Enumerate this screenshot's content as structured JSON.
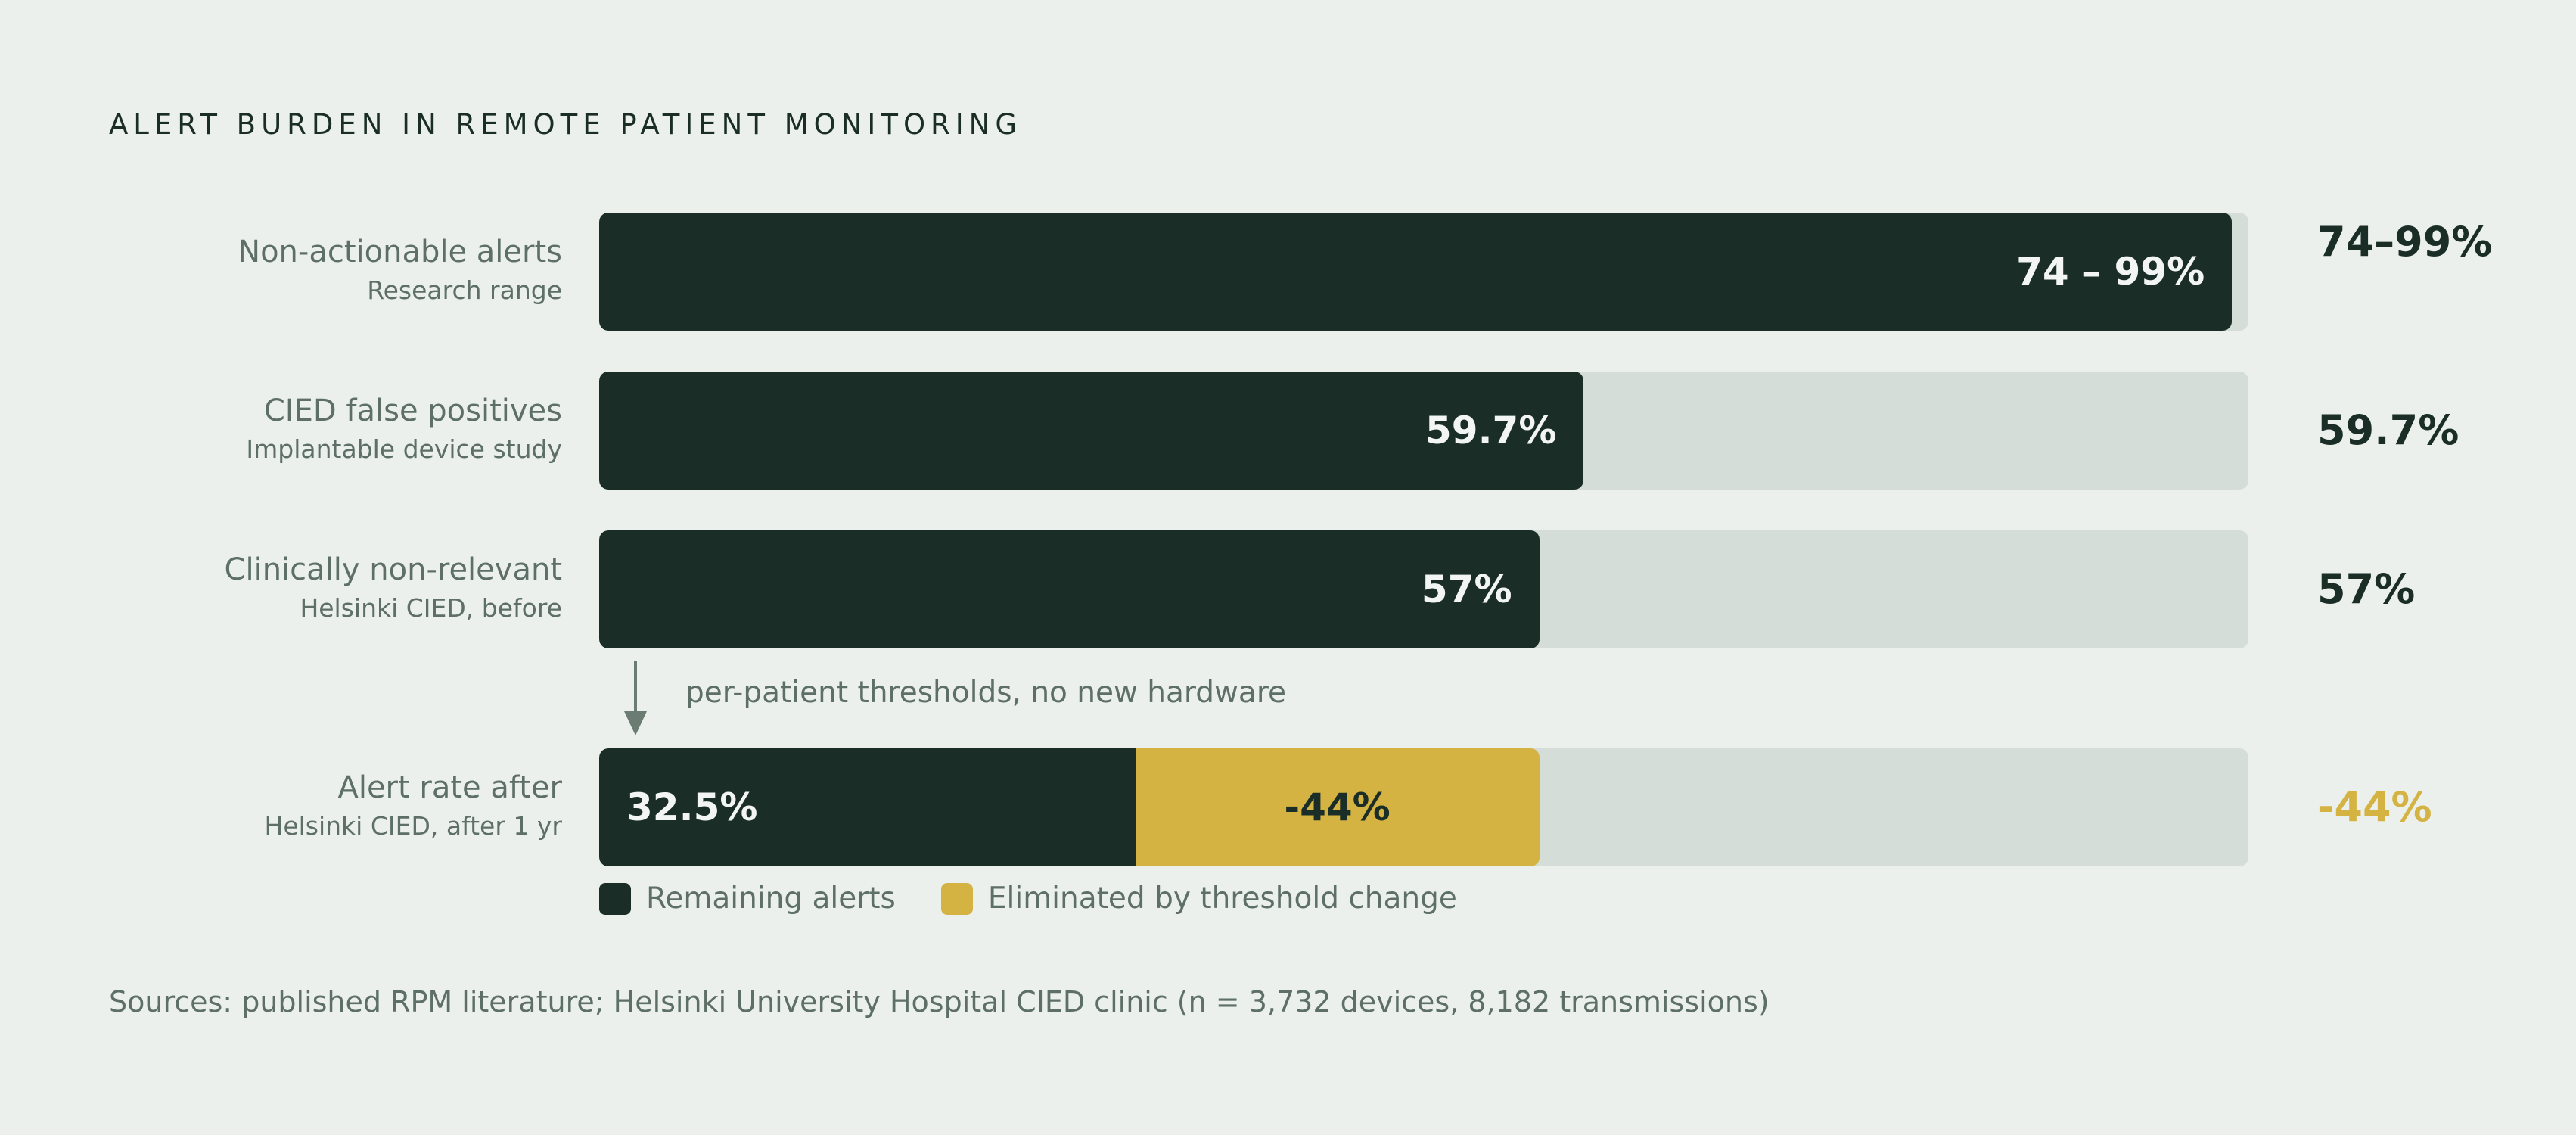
{
  "chart_data": {
    "type": "bar",
    "orientation": "horizontal",
    "title": "ALERT BURDEN IN REMOTE PATIENT MONITORING",
    "xlim": [
      0,
      100
    ],
    "grid": false,
    "legend_placement": "bottom-left",
    "legend": [
      {
        "name": "Remaining alerts",
        "color": "#1a2e27"
      },
      {
        "name": "Eliminated by threshold change",
        "color": "#d4b342"
      }
    ],
    "rows": [
      {
        "label": "Non-actionable alerts",
        "sublabel": "Research range",
        "value": 99,
        "bar_label": "74 – 99%",
        "right_label": "74–99%"
      },
      {
        "label": "CIED false positives",
        "sublabel": "Implantable device study",
        "value": 59.7,
        "bar_label": "59.7%",
        "right_label": "59.7%"
      },
      {
        "label": "Clinically non-relevant",
        "sublabel": "Helsinki CIED, before",
        "value": 57,
        "bar_label": "57%",
        "right_label": "57%"
      },
      {
        "label": "Alert rate after",
        "sublabel": "Helsinki CIED, after 1 yr",
        "value": 32.5,
        "bar_label": "32.5%",
        "eliminated": 24.5,
        "eliminated_label": "-44%",
        "right_label": "-44%"
      }
    ],
    "annotation": "per-patient thresholds, no new hardware",
    "source": "Sources: published RPM literature; Helsinki University Hospital CIED clinic (n = 3,732 devices, 8,182 transmissions)"
  },
  "colors": {
    "background": "#ebf0ec",
    "dark": "#1a2e27",
    "gold": "#d4b342",
    "track": "#d5ddd8",
    "muted": "#5d6f67"
  }
}
